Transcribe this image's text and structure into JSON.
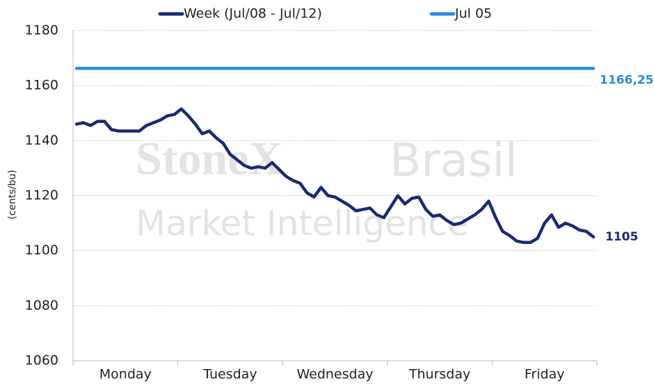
{
  "chart_data": {
    "type": "line",
    "watermark": [
      "StoneX",
      "Brasil",
      "Market Intelligence"
    ],
    "y_label": "(cents/bu)",
    "categories": [
      null,
      null,
      null,
      null,
      null,
      null,
      null,
      "Monday",
      null,
      null,
      null,
      null,
      null,
      null,
      null,
      null,
      null,
      null,
      null,
      null,
      null,
      null,
      "Tuesday",
      null,
      null,
      null,
      null,
      null,
      null,
      null,
      null,
      null,
      null,
      null,
      null,
      null,
      null,
      "Wednesday",
      null,
      null,
      null,
      null,
      null,
      null,
      null,
      null,
      null,
      null,
      null,
      null,
      null,
      null,
      "Thursday",
      null,
      null,
      null,
      null,
      null,
      null,
      null,
      null,
      null,
      null,
      null,
      null,
      null,
      null,
      "Friday",
      null,
      null,
      null,
      null,
      null,
      null,
      null
    ],
    "series": [
      {
        "name": "Week (Jul/08 - Jul/12)",
        "color": "#1b2a72",
        "values": [
          1146,
          1146.5,
          1145.5,
          1147,
          1147,
          1144,
          1143.5,
          1143.5,
          1143.5,
          1143.5,
          1145.5,
          1146.5,
          1147.5,
          1149,
          1149.5,
          1151.5,
          1149,
          1146,
          1142.5,
          1143.5,
          1141,
          1139,
          1135,
          1133,
          1131,
          1130,
          1130.5,
          1130,
          1132,
          1129.5,
          1127,
          1125.5,
          1124.5,
          1121,
          1119.5,
          1123,
          1120,
          1119.5,
          1118,
          1116.5,
          1114.5,
          1115,
          1115.5,
          1113,
          1112,
          1116,
          1120,
          1117,
          1119,
          1119.5,
          1115,
          1112.5,
          1113,
          1111,
          1109.5,
          1110,
          1111.5,
          1113,
          1115,
          1118,
          1112,
          1107,
          1105.5,
          1103.5,
          1103,
          1103,
          1104.5,
          1110,
          1113,
          1108.5,
          1110,
          1109,
          1107.5,
          1107,
          1105
        ]
      },
      {
        "name": "Jul 05",
        "color": "#2b8ae6",
        "values": [
          1166.25,
          1166.25,
          1166.25,
          1166.25,
          1166.25,
          1166.25,
          1166.25,
          1166.25,
          1166.25,
          1166.25,
          1166.25,
          1166.25,
          1166.25,
          1166.25,
          1166.25,
          1166.25,
          1166.25,
          1166.25,
          1166.25,
          1166.25,
          1166.25,
          1166.25,
          1166.25,
          1166.25,
          1166.25,
          1166.25,
          1166.25,
          1166.25,
          1166.25,
          1166.25,
          1166.25,
          1166.25,
          1166.25,
          1166.25,
          1166.25,
          1166.25,
          1166.25,
          1166.25,
          1166.25,
          1166.25,
          1166.25,
          1166.25,
          1166.25,
          1166.25,
          1166.25,
          1166.25,
          1166.25,
          1166.25,
          1166.25,
          1166.25,
          1166.25,
          1166.25,
          1166.25,
          1166.25,
          1166.25,
          1166.25,
          1166.25,
          1166.25,
          1166.25,
          1166.25,
          1166.25,
          1166.25,
          1166.25,
          1166.25,
          1166.25,
          1166.25,
          1166.25,
          1166.25,
          1166.25,
          1166.25,
          1166.25,
          1166.25,
          1166.25,
          1166.25,
          1166.25
        ],
        "value_labels": [
          null,
          null,
          null,
          null,
          null,
          null,
          null,
          null,
          null,
          null,
          null,
          null,
          null,
          null,
          null,
          null,
          null,
          null,
          null,
          null,
          null,
          null,
          null,
          null,
          null,
          null,
          null,
          null,
          null,
          null,
          null,
          null,
          null,
          null,
          null,
          null,
          null,
          null,
          null,
          null,
          null,
          null,
          null,
          null,
          null,
          null,
          null,
          null,
          null,
          null,
          null,
          null,
          null,
          null,
          null,
          null,
          null,
          null,
          null,
          null,
          null,
          null,
          null,
          null,
          null,
          null,
          null,
          null,
          null,
          null,
          null,
          null,
          null,
          null,
          "1166,25"
        ]
      }
    ],
    "ylim": [
      1060,
      1180
    ],
    "yticks": [
      1060,
      1080,
      1100,
      1120,
      1140,
      1160,
      1180
    ],
    "grid": true,
    "legend": "top"
  }
}
